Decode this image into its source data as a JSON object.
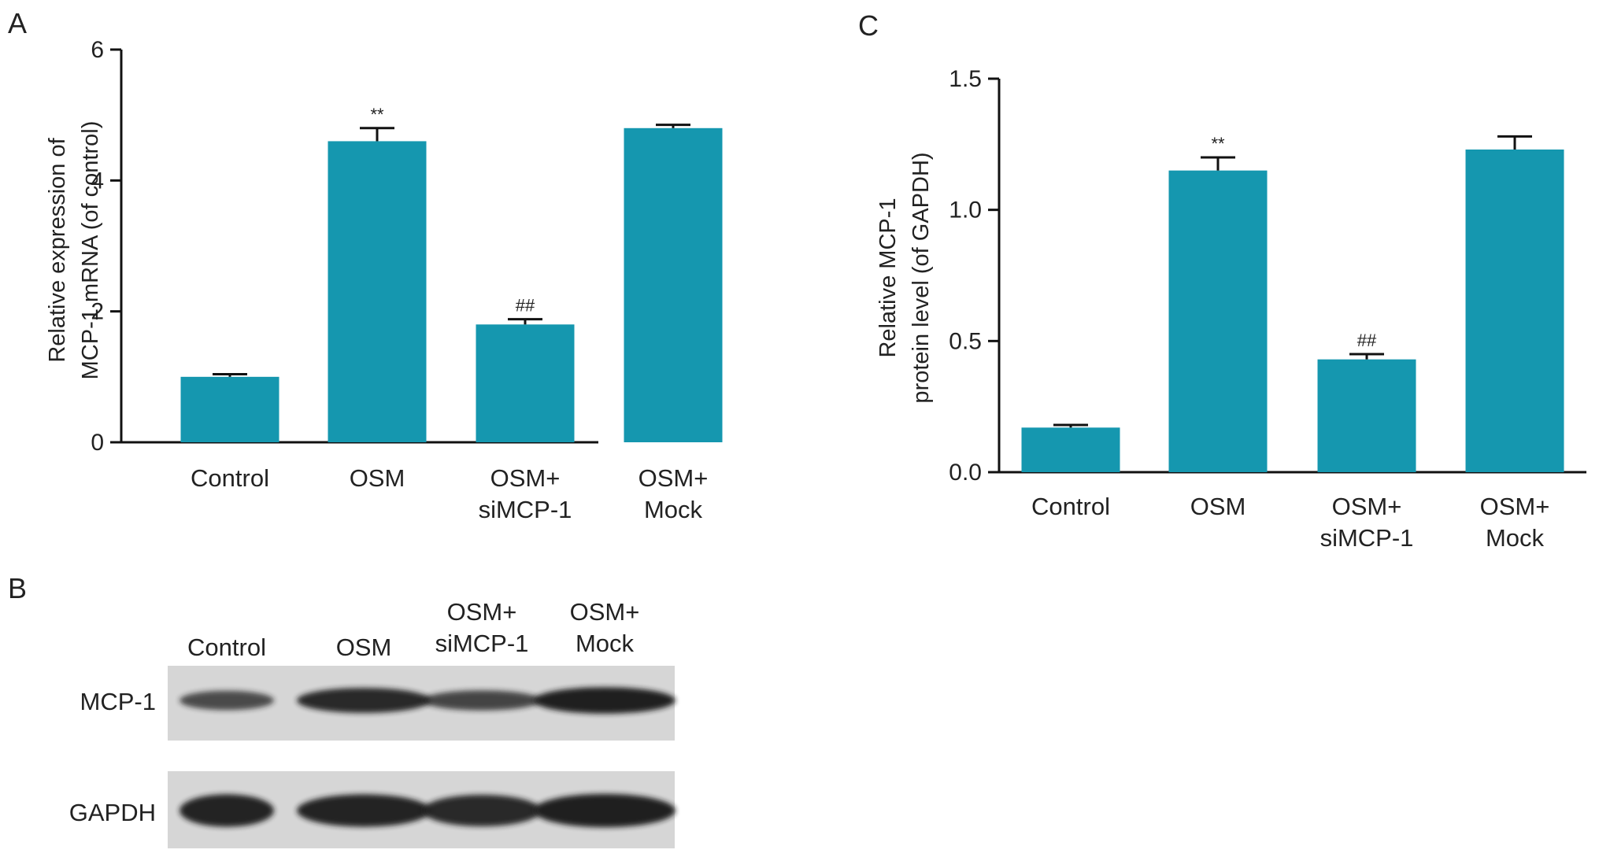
{
  "panels": {
    "a": "A",
    "b": "B",
    "c": "C"
  },
  "colors": {
    "bar": "#1597AF",
    "axis": "#111111",
    "blot_background": "#D6D6D6",
    "band": "#1C1C1C"
  },
  "chart_data": [
    {
      "id": "A",
      "type": "bar",
      "categories": [
        "Control",
        "OSM",
        "OSM+\nsiMCP-1",
        "OSM+\nMock"
      ],
      "values": [
        1.0,
        4.6,
        1.8,
        4.8
      ],
      "errors": [
        0.04,
        0.2,
        0.08,
        0.05
      ],
      "annotations": [
        "",
        "**",
        "##",
        ""
      ],
      "ylabel": [
        "Relative expression of",
        "MCP-1 mRNA (of control)"
      ],
      "ylim": [
        0,
        6
      ],
      "yticks": [
        "0",
        "2",
        "4",
        "6"
      ],
      "ytick_values": [
        0,
        2,
        4,
        6
      ]
    },
    {
      "id": "C",
      "type": "bar",
      "categories": [
        "Control",
        "OSM",
        "OSM+\nsiMCP-1",
        "OSM+\nMock"
      ],
      "values": [
        0.17,
        1.15,
        0.43,
        1.23
      ],
      "errors": [
        0.01,
        0.05,
        0.02,
        0.05
      ],
      "annotations": [
        "",
        "**",
        "##",
        ""
      ],
      "ylabel": [
        "Relative MCP-1",
        "protein level (of GAPDH)"
      ],
      "ylim": [
        0,
        1.5
      ],
      "yticks": [
        "0.0",
        "0.5",
        "1.0",
        "1.5"
      ],
      "ytick_values": [
        0,
        0.5,
        1.0,
        1.5
      ]
    }
  ],
  "blot": {
    "lanes": [
      "Control",
      "OSM",
      "OSM+\nsiMCP-1",
      "OSM+\nMock"
    ],
    "rows": [
      {
        "label": "MCP-1",
        "band_intensity": [
          0.45,
          0.85,
          0.5,
          0.95
        ]
      },
      {
        "label": "GAPDH",
        "band_intensity": [
          0.9,
          0.9,
          0.85,
          0.95
        ]
      }
    ]
  }
}
